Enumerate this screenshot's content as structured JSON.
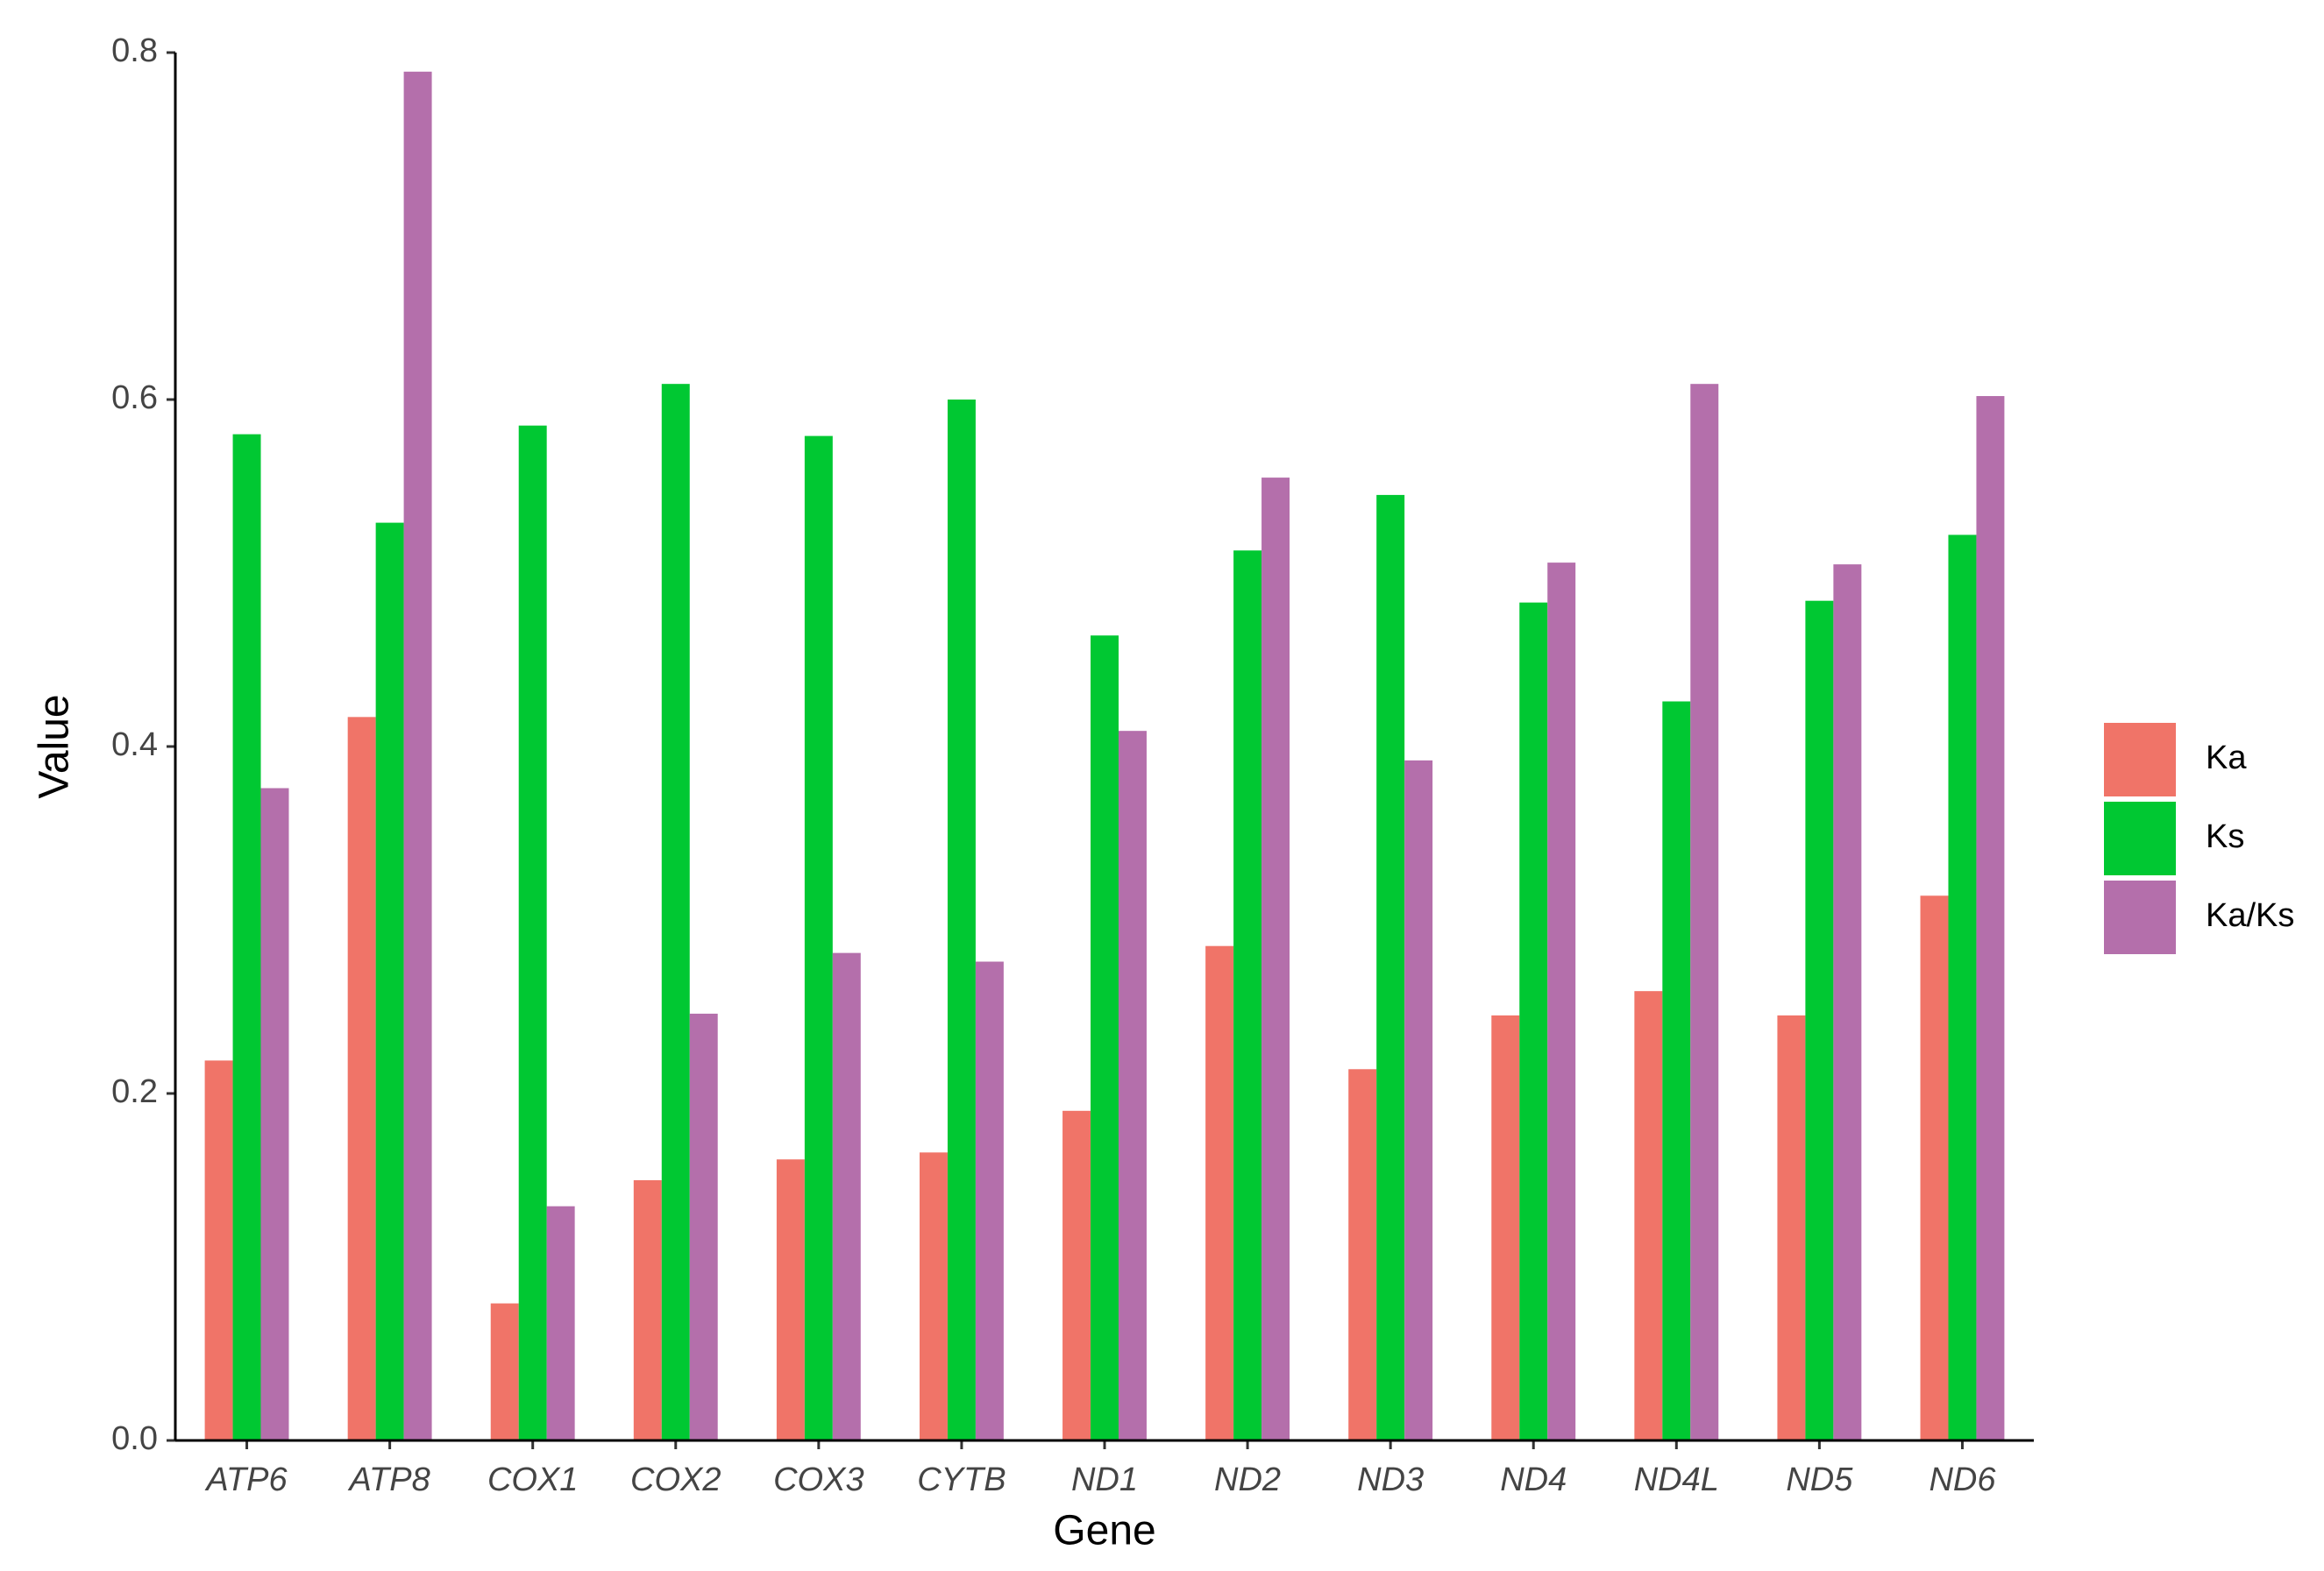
{
  "chart_data": {
    "type": "bar",
    "x_label": "Gene",
    "y_label": "Value",
    "categories": [
      "ATP6",
      "ATP8",
      "COX1",
      "COX2",
      "COX3",
      "CYTB",
      "ND1",
      "ND2",
      "ND3",
      "ND4",
      "ND4L",
      "ND5",
      "ND6"
    ],
    "series": [
      {
        "name": "Ka",
        "color": "#f07468",
        "values": [
          0.219,
          0.417,
          0.079,
          0.15,
          0.162,
          0.166,
          0.19,
          0.285,
          0.214,
          0.245,
          0.259,
          0.245,
          0.314
        ]
      },
      {
        "name": "Ks",
        "color": "#00c832",
        "values": [
          0.58,
          0.529,
          0.585,
          0.609,
          0.579,
          0.6,
          0.464,
          0.513,
          0.545,
          0.483,
          0.426,
          0.484,
          0.522
        ]
      },
      {
        "name": "Ka/Ks",
        "color": "#b46fab",
        "values": [
          0.376,
          0.789,
          0.135,
          0.246,
          0.281,
          0.276,
          0.409,
          0.555,
          0.392,
          0.506,
          0.609,
          0.505,
          0.602
        ]
      }
    ],
    "ylim": [
      0,
      0.8
    ],
    "yticks": [
      {
        "value": 0,
        "label": "0.0"
      },
      0.2,
      0.4,
      0.6,
      0.8
    ],
    "grid": false,
    "legend": "right"
  }
}
